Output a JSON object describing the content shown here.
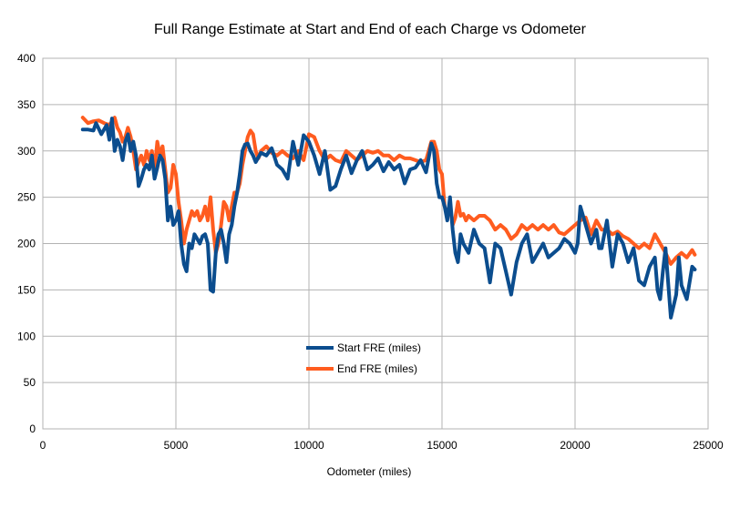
{
  "chart_data": {
    "type": "line",
    "title": "Full Range Estimate at Start and End of each Charge vs Odometer",
    "xlabel": "Odometer (miles)",
    "ylabel": "",
    "xlim": [
      0,
      25000
    ],
    "ylim": [
      0,
      400
    ],
    "xticks": [
      "0",
      "5000",
      "10000",
      "15000",
      "20000",
      "25000"
    ],
    "yticks": [
      "0",
      "50",
      "100",
      "150",
      "200",
      "250",
      "300",
      "350",
      "400"
    ],
    "grid": true,
    "legend_position": "center-bottom",
    "series": [
      {
        "name": "Start FRE (miles)",
        "color": "#0b4d8e",
        "x": [
          1500,
          1700,
          1900,
          2000,
          2200,
          2400,
          2500,
          2600,
          2700,
          2800,
          2900,
          3000,
          3100,
          3200,
          3300,
          3400,
          3500,
          3600,
          3700,
          3800,
          3900,
          4000,
          4100,
          4200,
          4300,
          4400,
          4500,
          4600,
          4700,
          4800,
          4900,
          5000,
          5100,
          5200,
          5300,
          5400,
          5500,
          5600,
          5700,
          5800,
          5900,
          6000,
          6100,
          6200,
          6300,
          6400,
          6500,
          6600,
          6700,
          6800,
          6900,
          7000,
          7100,
          7200,
          7300,
          7400,
          7500,
          7600,
          7700,
          7800,
          7900,
          8000,
          8200,
          8400,
          8600,
          8800,
          9000,
          9200,
          9400,
          9600,
          9800,
          10000,
          10200,
          10400,
          10600,
          10800,
          11000,
          11200,
          11400,
          11600,
          11800,
          12000,
          12200,
          12400,
          12600,
          12800,
          13000,
          13200,
          13400,
          13600,
          13800,
          14000,
          14200,
          14400,
          14600,
          14700,
          14800,
          14900,
          15000,
          15100,
          15200,
          15300,
          15400,
          15500,
          15600,
          15700,
          15800,
          15900,
          16000,
          16200,
          16400,
          16600,
          16800,
          17000,
          17200,
          17400,
          17600,
          17800,
          18000,
          18200,
          18400,
          18600,
          18800,
          19000,
          19200,
          19400,
          19600,
          19800,
          20000,
          20100,
          20200,
          20400,
          20600,
          20800,
          20900,
          21000,
          21200,
          21400,
          21600,
          21800,
          22000,
          22200,
          22400,
          22600,
          22800,
          23000,
          23100,
          23200,
          23300,
          23400,
          23600,
          23800,
          23900,
          24000,
          24200,
          24400,
          24500
        ],
        "values": [
          323,
          323,
          322,
          330,
          318,
          328,
          312,
          335,
          300,
          312,
          305,
          290,
          310,
          318,
          300,
          310,
          295,
          262,
          270,
          280,
          285,
          280,
          295,
          270,
          282,
          295,
          290,
          270,
          225,
          240,
          220,
          225,
          235,
          200,
          178,
          170,
          200,
          195,
          210,
          205,
          200,
          208,
          210,
          200,
          150,
          148,
          190,
          210,
          215,
          200,
          180,
          210,
          220,
          240,
          255,
          275,
          300,
          307,
          308,
          300,
          295,
          288,
          298,
          295,
          303,
          285,
          280,
          270,
          310,
          285,
          317,
          310,
          295,
          275,
          300,
          258,
          262,
          280,
          295,
          276,
          290,
          300,
          280,
          285,
          292,
          278,
          288,
          280,
          285,
          265,
          280,
          282,
          290,
          277,
          308,
          300,
          265,
          250,
          250,
          240,
          225,
          250,
          215,
          190,
          180,
          210,
          200,
          195,
          190,
          215,
          200,
          195,
          158,
          200,
          195,
          170,
          145,
          180,
          200,
          210,
          180,
          190,
          200,
          185,
          190,
          195,
          205,
          200,
          190,
          200,
          240,
          220,
          200,
          215,
          195,
          195,
          225,
          175,
          210,
          200,
          180,
          195,
          160,
          155,
          175,
          185,
          150,
          140,
          170,
          195,
          120,
          145,
          185,
          155,
          140,
          175,
          172
        ]
      },
      {
        "name": "End FRE (miles)",
        "color": "#ff5c1f",
        "x": [
          1500,
          1700,
          1900,
          2100,
          2300,
          2500,
          2700,
          2800,
          2900,
          3000,
          3100,
          3200,
          3300,
          3400,
          3500,
          3600,
          3700,
          3800,
          3900,
          4000,
          4100,
          4200,
          4300,
          4400,
          4500,
          4600,
          4700,
          4800,
          4900,
          5000,
          5100,
          5200,
          5300,
          5400,
          5500,
          5600,
          5700,
          5800,
          5900,
          6000,
          6100,
          6200,
          6300,
          6400,
          6500,
          6600,
          6700,
          6800,
          6900,
          7000,
          7100,
          7200,
          7300,
          7400,
          7500,
          7600,
          7700,
          7800,
          7900,
          8000,
          8100,
          8200,
          8400,
          8600,
          8800,
          9000,
          9200,
          9400,
          9600,
          9800,
          10000,
          10200,
          10400,
          10600,
          10800,
          11000,
          11200,
          11400,
          11600,
          11800,
          12000,
          12200,
          12400,
          12600,
          12800,
          13000,
          13200,
          13400,
          13600,
          13800,
          14000,
          14200,
          14400,
          14600,
          14700,
          14800,
          14900,
          15000,
          15100,
          15200,
          15300,
          15400,
          15500,
          15600,
          15700,
          15800,
          15900,
          16000,
          16200,
          16400,
          16600,
          16800,
          17000,
          17200,
          17400,
          17600,
          17800,
          18000,
          18200,
          18400,
          18600,
          18800,
          19000,
          19200,
          19400,
          19600,
          19800,
          20000,
          20200,
          20400,
          20600,
          20800,
          21000,
          21200,
          21400,
          21600,
          21800,
          22000,
          22200,
          22400,
          22600,
          22800,
          23000,
          23200,
          23400,
          23600,
          23800,
          24000,
          24200,
          24400,
          24500
        ],
        "values": [
          336,
          330,
          332,
          333,
          330,
          328,
          336,
          325,
          320,
          310,
          315,
          325,
          315,
          300,
          280,
          288,
          295,
          285,
          300,
          290,
          300,
          280,
          310,
          295,
          305,
          280,
          255,
          260,
          285,
          275,
          245,
          225,
          200,
          215,
          225,
          235,
          230,
          235,
          225,
          230,
          240,
          225,
          250,
          215,
          190,
          200,
          220,
          245,
          240,
          225,
          240,
          255,
          255,
          265,
          285,
          300,
          315,
          322,
          318,
          300,
          292,
          300,
          305,
          298,
          295,
          300,
          295,
          292,
          300,
          290,
          318,
          315,
          300,
          290,
          295,
          290,
          288,
          300,
          295,
          290,
          295,
          300,
          298,
          300,
          295,
          295,
          290,
          295,
          292,
          292,
          290,
          288,
          290,
          310,
          310,
          300,
          280,
          275,
          240,
          230,
          240,
          220,
          228,
          245,
          230,
          232,
          225,
          230,
          225,
          230,
          230,
          225,
          215,
          220,
          215,
          205,
          210,
          220,
          215,
          220,
          215,
          220,
          215,
          220,
          212,
          210,
          215,
          220,
          225,
          228,
          210,
          225,
          215,
          215,
          210,
          213,
          208,
          205,
          200,
          195,
          200,
          195,
          210,
          200,
          190,
          178,
          185,
          190,
          185,
          193,
          188
        ]
      }
    ]
  }
}
